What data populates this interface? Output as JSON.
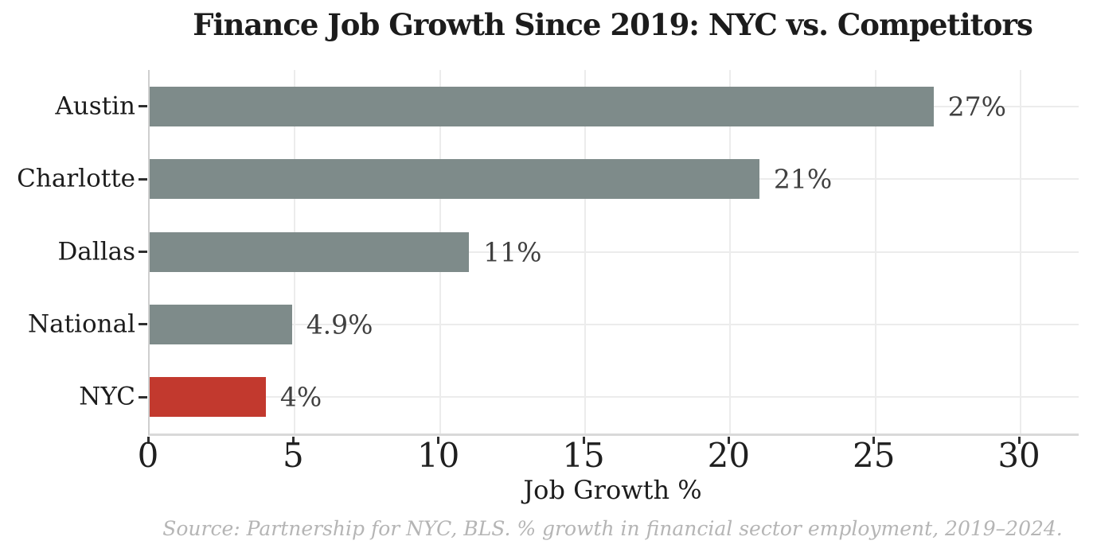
{
  "chart_data": {
    "type": "bar",
    "orientation": "horizontal",
    "title": "Finance Job Growth Since 2019: NYC vs. Competitors",
    "categories": [
      "Austin",
      "Charlotte",
      "Dallas",
      "National",
      "NYC"
    ],
    "values": [
      27,
      21,
      11,
      4.9,
      4
    ],
    "value_labels": [
      "27%",
      "21%",
      "11%",
      "4.9%",
      "4%"
    ],
    "bar_colors": [
      "#7e8b8a",
      "#7e8b8a",
      "#7e8b8a",
      "#7e8b8a",
      "#c2392e"
    ],
    "highlighted_category": "NYC",
    "xlabel": "Job Growth %",
    "xticks": [
      0,
      5,
      10,
      15,
      20,
      25,
      30
    ],
    "xtick_labels": [
      "0",
      "5",
      "10",
      "15",
      "20",
      "25",
      "30"
    ],
    "xlim": [
      0,
      32
    ],
    "grid": true,
    "legend": false,
    "source_note": "Source: Partnership for NYC, BLS. % growth in financial sector employment, 2019–2024."
  },
  "style": {
    "background": "#ffffff",
    "bar_default_color": "#7e8b8a",
    "bar_highlight_color": "#c2392e",
    "grid_color": "#ececec",
    "spine_color": "#d9d9d9",
    "tick_color": "#2f2f2f",
    "title_color": "#1c1c1c",
    "label_color": "#1c1c1c",
    "value_label_color": "#404040",
    "source_color": "#b5b5b5"
  }
}
